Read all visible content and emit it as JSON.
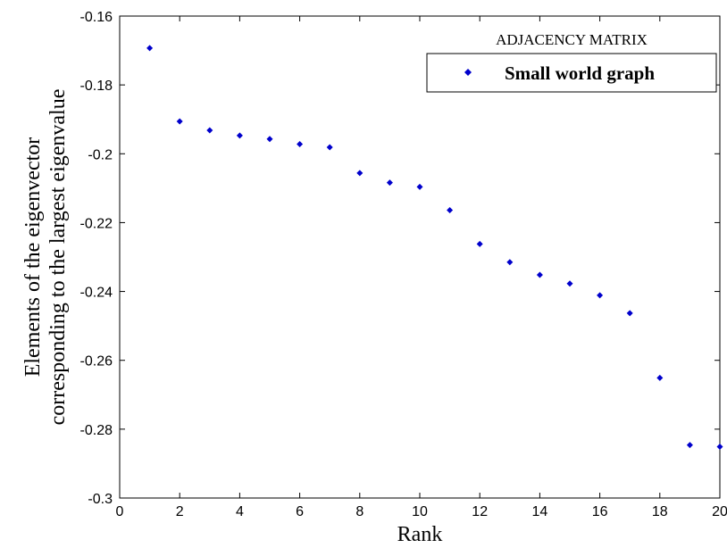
{
  "chart_data": {
    "type": "scatter",
    "xlabel": "Rank",
    "ylabel_lines": [
      "Elements of the eigenvector",
      "corresponding to the largest eigenvalue"
    ],
    "xlim": [
      0,
      20
    ],
    "ylim": [
      -0.3,
      -0.16
    ],
    "x_ticks": [
      0,
      2,
      4,
      6,
      8,
      10,
      12,
      14,
      16,
      18,
      20
    ],
    "x_tick_labels": [
      "0",
      "2",
      "4",
      "6",
      "8",
      "10",
      "12",
      "14",
      "16",
      "18",
      "20"
    ],
    "y_ticks": [
      -0.16,
      -0.18,
      -0.2,
      -0.22,
      -0.24,
      -0.26,
      -0.28,
      -0.3
    ],
    "y_tick_labels": [
      "-0.16",
      "-0.18",
      "-0.2",
      "-0.22",
      "-0.24",
      "-0.26",
      "-0.28",
      "-0.3"
    ],
    "grid": false,
    "legend_position": "top-right",
    "annotation": "ADJACENCY MATRIX",
    "series": [
      {
        "name": "Small world graph",
        "color": "#0000cc",
        "marker": "diamond",
        "x": [
          1,
          2,
          3,
          4,
          5,
          6,
          7,
          8,
          9,
          10,
          11,
          12,
          13,
          14,
          15,
          16,
          17,
          18,
          19,
          20
        ],
        "y": [
          -0.1693,
          -0.1906,
          -0.1932,
          -0.1947,
          -0.1957,
          -0.1972,
          -0.1981,
          -0.2056,
          -0.2084,
          -0.2096,
          -0.2164,
          -0.2262,
          -0.2315,
          -0.2352,
          -0.2377,
          -0.2411,
          -0.2463,
          -0.2651,
          -0.2846,
          -0.2851
        ]
      }
    ]
  }
}
